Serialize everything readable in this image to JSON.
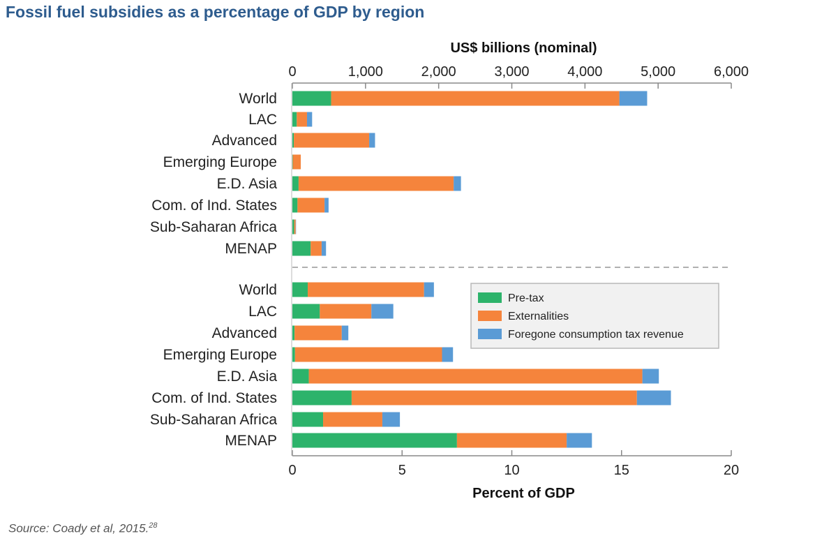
{
  "title": "Fossil fuel subsidies as a percentage of GDP by region",
  "source": {
    "text": "Source: Coady et al, 2015.",
    "footnote": "28"
  },
  "colors": {
    "pre_tax": "#2db36b",
    "externalities": "#f5843c",
    "foregone": "#5a9bd5",
    "title": "#2e5c8e"
  },
  "chart_data": [
    {
      "type": "bar",
      "orientation": "horizontal",
      "stacked": true,
      "xlabel": "US$ billions (nominal)",
      "axis_position": "top",
      "xlim": [
        0,
        6000
      ],
      "ticks": [
        0,
        1000,
        2000,
        3000,
        4000,
        5000,
        6000
      ],
      "tick_labels": [
        "0",
        "1,000",
        "2,000",
        "3,000",
        "4,000",
        "5,000",
        "6,000"
      ],
      "categories": [
        "World",
        "LAC",
        "Advanced",
        "Emerging Europe",
        "E.D. Asia",
        "Com. of Ind. States",
        "Sub-Saharan Africa",
        "MENAP"
      ],
      "series": [
        {
          "name": "Pre-tax",
          "color": "#2db36b",
          "values": [
            530,
            60,
            20,
            5,
            85,
            70,
            25,
            250
          ]
        },
        {
          "name": "Externalities",
          "color": "#f5843c",
          "values": [
            3940,
            140,
            1030,
            110,
            2120,
            370,
            20,
            150
          ]
        },
        {
          "name": "Foregone consumption tax revenue",
          "color": "#5a9bd5",
          "values": [
            380,
            70,
            80,
            0,
            100,
            55,
            5,
            60
          ]
        }
      ]
    },
    {
      "type": "bar",
      "orientation": "horizontal",
      "stacked": true,
      "xlabel": "Percent of GDP",
      "axis_position": "bottom",
      "xlim": [
        0,
        20
      ],
      "ticks": [
        0,
        5,
        10,
        15,
        20
      ],
      "tick_labels": [
        "0",
        "5",
        "10",
        "15",
        "20"
      ],
      "categories": [
        "World",
        "LAC",
        "Advanced",
        "Emerging Europe",
        "E.D. Asia",
        "Com. of Ind. States",
        "Sub-Saharan Africa",
        "MENAP"
      ],
      "series": [
        {
          "name": "Pre-tax",
          "color": "#2db36b",
          "values": [
            0.7,
            1.25,
            0.1,
            0.12,
            0.75,
            2.7,
            1.4,
            7.5
          ]
        },
        {
          "name": "Externalities",
          "color": "#f5843c",
          "values": [
            5.3,
            2.35,
            2.15,
            6.7,
            15.2,
            13.0,
            2.7,
            5.0
          ]
        },
        {
          "name": "Foregone consumption tax revenue",
          "color": "#5a9bd5",
          "values": [
            0.45,
            1.0,
            0.3,
            0.5,
            0.75,
            1.55,
            0.8,
            1.15
          ]
        }
      ]
    }
  ],
  "legend": {
    "placement": "inside-right",
    "items": [
      "Pre-tax",
      "Externalities",
      "Foregone consumption tax revenue"
    ]
  }
}
